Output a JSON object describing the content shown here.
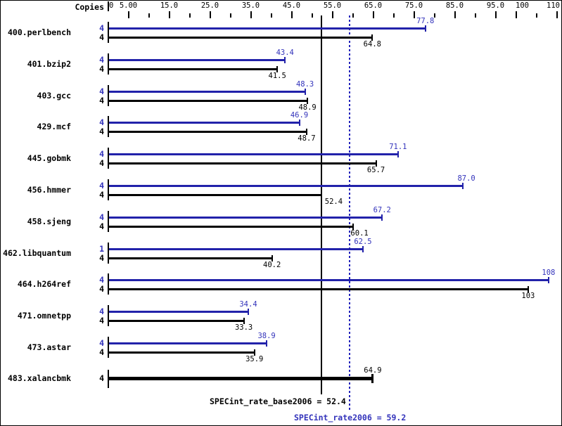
{
  "header": {
    "copies_label": "Copies"
  },
  "chart_data": {
    "type": "bar",
    "orientation": "horizontal",
    "title": "",
    "xlabel": "",
    "ylabel": "",
    "xlim": [
      0,
      110
    ],
    "grid": false,
    "legend": null,
    "colors": {
      "peak_bar": "#2222aa",
      "peak_text": "#3333bb",
      "base_bar": "#000000",
      "base_text": "#000000",
      "dotted_line": "#2222bb",
      "frame": "#000000",
      "background": "#ffffff"
    },
    "x_axis": {
      "minor_tick_step": 5,
      "tick_labels": [
        {
          "v": 0,
          "t": "0"
        },
        {
          "v": 5,
          "t": "5.00"
        },
        {
          "v": 15,
          "t": "15.0"
        },
        {
          "v": 25,
          "t": "25.0"
        },
        {
          "v": 35,
          "t": "35.0"
        },
        {
          "v": 45,
          "t": "45.0"
        },
        {
          "v": 55,
          "t": "55.0"
        },
        {
          "v": 65,
          "t": "65.0"
        },
        {
          "v": 75,
          "t": "75.0"
        },
        {
          "v": 85,
          "t": "85.0"
        },
        {
          "v": 95,
          "t": "95.0"
        },
        {
          "v": 100,
          "t": "100"
        },
        {
          "v": 110,
          "t": "110"
        }
      ]
    },
    "copies_header": "Copies",
    "categories": [
      "400.perlbench",
      "401.bzip2",
      "403.gcc",
      "429.mcf",
      "445.gobmk",
      "456.hmmer",
      "458.sjeng",
      "462.libquantum",
      "464.h264ref",
      "471.omnetpp",
      "473.astar",
      "483.xalancbmk"
    ],
    "series": [
      {
        "name": "peak",
        "values": [
          77.8,
          43.4,
          48.3,
          46.9,
          71.1,
          87.0,
          67.2,
          62.5,
          108,
          34.4,
          38.9,
          null
        ],
        "copies": [
          4,
          4,
          4,
          4,
          4,
          4,
          4,
          1,
          4,
          4,
          4,
          null
        ]
      },
      {
        "name": "base",
        "values": [
          64.8,
          41.5,
          48.9,
          48.7,
          65.7,
          52.4,
          60.1,
          40.2,
          103,
          33.3,
          35.9,
          64.9
        ],
        "copies": [
          4,
          4,
          4,
          4,
          4,
          4,
          4,
          4,
          4,
          4,
          4,
          4
        ]
      }
    ],
    "benchmarks": [
      {
        "name": "400.perlbench",
        "peak": {
          "copies": "4",
          "value": 77.8,
          "label": "77.8"
        },
        "base": {
          "copies": "4",
          "value": 64.8,
          "label": "64.8"
        }
      },
      {
        "name": "401.bzip2",
        "peak": {
          "copies": "4",
          "value": 43.4,
          "label": "43.4"
        },
        "base": {
          "copies": "4",
          "value": 41.5,
          "label": "41.5"
        }
      },
      {
        "name": "403.gcc",
        "peak": {
          "copies": "4",
          "value": 48.3,
          "label": "48.3"
        },
        "base": {
          "copies": "4",
          "value": 48.9,
          "label": "48.9"
        }
      },
      {
        "name": "429.mcf",
        "peak": {
          "copies": "4",
          "value": 46.9,
          "label": "46.9"
        },
        "base": {
          "copies": "4",
          "value": 48.7,
          "label": "48.7"
        }
      },
      {
        "name": "445.gobmk",
        "peak": {
          "copies": "4",
          "value": 71.1,
          "label": "71.1"
        },
        "base": {
          "copies": "4",
          "value": 65.7,
          "label": "65.7"
        }
      },
      {
        "name": "456.hmmer",
        "peak": {
          "copies": "4",
          "value": 87.0,
          "label": "87.0",
          "label_dx": 5
        },
        "base": {
          "copies": "4",
          "value": 52.4,
          "label": "52.4",
          "label_dx": 17
        }
      },
      {
        "name": "458.sjeng",
        "peak": {
          "copies": "4",
          "value": 67.2,
          "label": "67.2"
        },
        "base": {
          "copies": "4",
          "value": 60.1,
          "label": "60.1",
          "label_dx": 9
        }
      },
      {
        "name": "462.libquantum",
        "peak": {
          "copies": "1",
          "value": 62.5,
          "label": "62.5"
        },
        "base": {
          "copies": "4",
          "value": 40.2,
          "label": "40.2"
        }
      },
      {
        "name": "464.h264ref",
        "peak": {
          "copies": "4",
          "value": 108,
          "label": "108"
        },
        "base": {
          "copies": "4",
          "value": 103,
          "label": "103"
        }
      },
      {
        "name": "471.omnetpp",
        "peak": {
          "copies": "4",
          "value": 34.4,
          "label": "34.4"
        },
        "base": {
          "copies": "4",
          "value": 33.3,
          "label": "33.3"
        }
      },
      {
        "name": "473.astar",
        "peak": {
          "copies": "4",
          "value": 38.9,
          "label": "38.9"
        },
        "base": {
          "copies": "4",
          "value": 35.9,
          "label": "35.9"
        }
      },
      {
        "name": "483.xalancbmk",
        "peak": null,
        "base": {
          "copies": "4",
          "value": 64.9,
          "label": "64.9",
          "thick": true
        }
      }
    ],
    "reference_lines": [
      {
        "series": "base",
        "style": "solid",
        "value": 52.4,
        "label": "SPECint_rate_base2006 = 52.4"
      },
      {
        "series": "peak",
        "style": "dotted",
        "value": 59.2,
        "label": "SPECint_rate2006 = 59.2"
      }
    ]
  }
}
